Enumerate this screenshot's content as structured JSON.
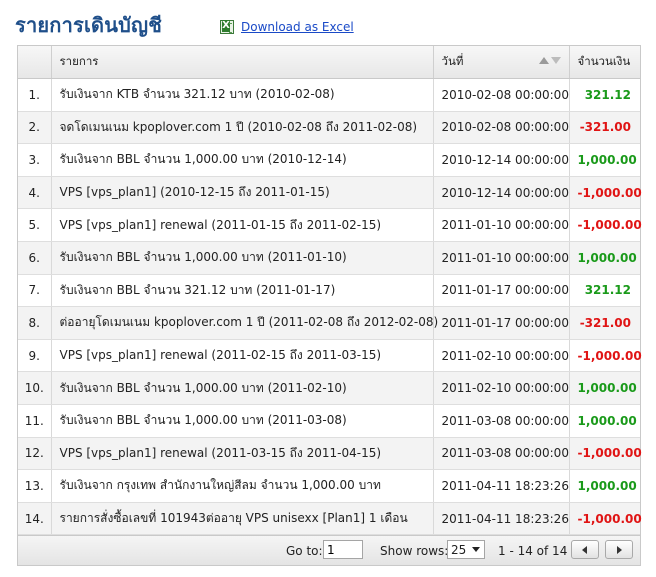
{
  "page": {
    "title": "รายการเดินบัญชี"
  },
  "excel": {
    "label": "Download as Excel",
    "icon": "excel-icon"
  },
  "table": {
    "headers": {
      "num": "",
      "desc": "รายการ",
      "date": "วันที่",
      "amount": "จำนวนเงิน"
    },
    "sort": {
      "column": "date",
      "icon": "sort-icon"
    },
    "rows": [
      {
        "num": "1.",
        "desc": "รับเงินจาก KTB จำนวน 321.12 บาท (2010-02-08)",
        "date": "2010-02-08 00:00:00",
        "amount": "321.12",
        "sign": "pos"
      },
      {
        "num": "2.",
        "desc": "จดโดเมนเนม kpoplover.com 1 ปี (2010-02-08 ถึง 2011-02-08)",
        "date": "2010-02-08 00:00:00",
        "amount": "-321.00",
        "sign": "neg"
      },
      {
        "num": "3.",
        "desc": "รับเงินจาก BBL จำนวน 1,000.00 บาท (2010-12-14)",
        "date": "2010-12-14 00:00:00",
        "amount": "1,000.00",
        "sign": "pos"
      },
      {
        "num": "4.",
        "desc": "VPS [vps_plan1] (2010-12-15 ถึง 2011-01-15)",
        "date": "2010-12-14 00:00:00",
        "amount": "-1,000.00",
        "sign": "neg"
      },
      {
        "num": "5.",
        "desc": "VPS [vps_plan1] renewal (2011-01-15 ถึง 2011-02-15)",
        "date": "2011-01-10 00:00:00",
        "amount": "-1,000.00",
        "sign": "neg"
      },
      {
        "num": "6.",
        "desc": "รับเงินจาก BBL จำนวน 1,000.00 บาท (2011-01-10)",
        "date": "2011-01-10 00:00:00",
        "amount": "1,000.00",
        "sign": "pos"
      },
      {
        "num": "7.",
        "desc": "รับเงินจาก BBL จำนวน 321.12 บาท (2011-01-17)",
        "date": "2011-01-17 00:00:00",
        "amount": "321.12",
        "sign": "pos"
      },
      {
        "num": "8.",
        "desc": "ต่ออายุโดเมนเนม kpoplover.com 1 ปี (2011-02-08 ถึง 2012-02-08)",
        "date": "2011-01-17 00:00:00",
        "amount": "-321.00",
        "sign": "neg"
      },
      {
        "num": "9.",
        "desc": "VPS [vps_plan1] renewal (2011-02-15 ถึง 2011-03-15)",
        "date": "2011-02-10 00:00:00",
        "amount": "-1,000.00",
        "sign": "neg"
      },
      {
        "num": "10.",
        "desc": "รับเงินจาก BBL จำนวน 1,000.00 บาท (2011-02-10)",
        "date": "2011-02-10 00:00:00",
        "amount": "1,000.00",
        "sign": "pos"
      },
      {
        "num": "11.",
        "desc": "รับเงินจาก BBL จำนวน 1,000.00 บาท (2011-03-08)",
        "date": "2011-03-08 00:00:00",
        "amount": "1,000.00",
        "sign": "pos"
      },
      {
        "num": "12.",
        "desc": "VPS [vps_plan1] renewal (2011-03-15 ถึง 2011-04-15)",
        "date": "2011-03-08 00:00:00",
        "amount": "-1,000.00",
        "sign": "neg"
      },
      {
        "num": "13.",
        "desc": "รับเงินจาก กรุงเทพ สำนักงานใหญ่สีลม จำนวน 1,000.00 บาท",
        "date": "2011-04-11 18:23:26",
        "amount": "1,000.00",
        "sign": "pos"
      },
      {
        "num": "14.",
        "desc": "รายการสั่งซื้อเลขที่ 101943ต่ออายุ VPS unisexx [Plan1] 1 เดือน",
        "date": "2011-04-11 18:23:26",
        "amount": "-1,000.00",
        "sign": "neg"
      }
    ]
  },
  "pager": {
    "goto_label": "Go to:",
    "goto_value": "1",
    "rows_label": "Show rows:",
    "rows_value": "25",
    "range": "1 - 14 of 14",
    "prev_icon": "chevron-left-icon",
    "next_icon": "chevron-right-icon"
  },
  "colors": {
    "title": "#1f4f8a",
    "positive": "#1a9a1a",
    "negative": "#e01414",
    "link": "#1a4ac7"
  }
}
